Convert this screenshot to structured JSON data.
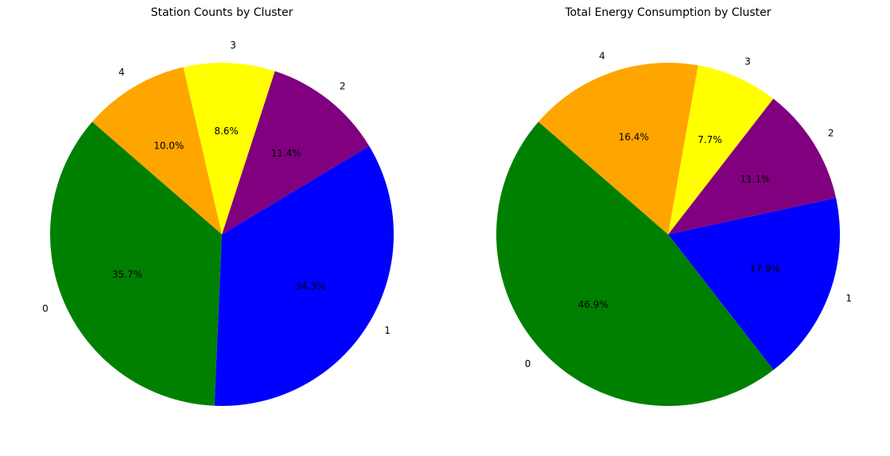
{
  "chart_data": [
    {
      "type": "pie",
      "title": "Station Counts by Cluster",
      "categories": [
        "0",
        "1",
        "2",
        "3",
        "4"
      ],
      "values": [
        35.7,
        34.3,
        11.4,
        8.6,
        10.0
      ],
      "value_labels": [
        "35.7%",
        "34.3%",
        "11.4%",
        "8.6%",
        "10.0%"
      ],
      "colors": [
        "#008000",
        "#0000ff",
        "#800080",
        "#ffff00",
        "#ffa500"
      ],
      "start_angle_deg": 139,
      "direction": "counterclockwise",
      "legend": "none"
    },
    {
      "type": "pie",
      "title": "Total Energy Consumption by Cluster",
      "categories": [
        "0",
        "1",
        "2",
        "3",
        "4"
      ],
      "values": [
        46.9,
        17.9,
        11.1,
        7.7,
        16.4
      ],
      "value_labels": [
        "46.9%",
        "17.9%",
        "11.1%",
        "7.7%",
        "16.4%"
      ],
      "colors": [
        "#008000",
        "#0000ff",
        "#800080",
        "#ffff00",
        "#ffa500"
      ],
      "start_angle_deg": 139,
      "direction": "counterclockwise",
      "legend": "none"
    }
  ]
}
